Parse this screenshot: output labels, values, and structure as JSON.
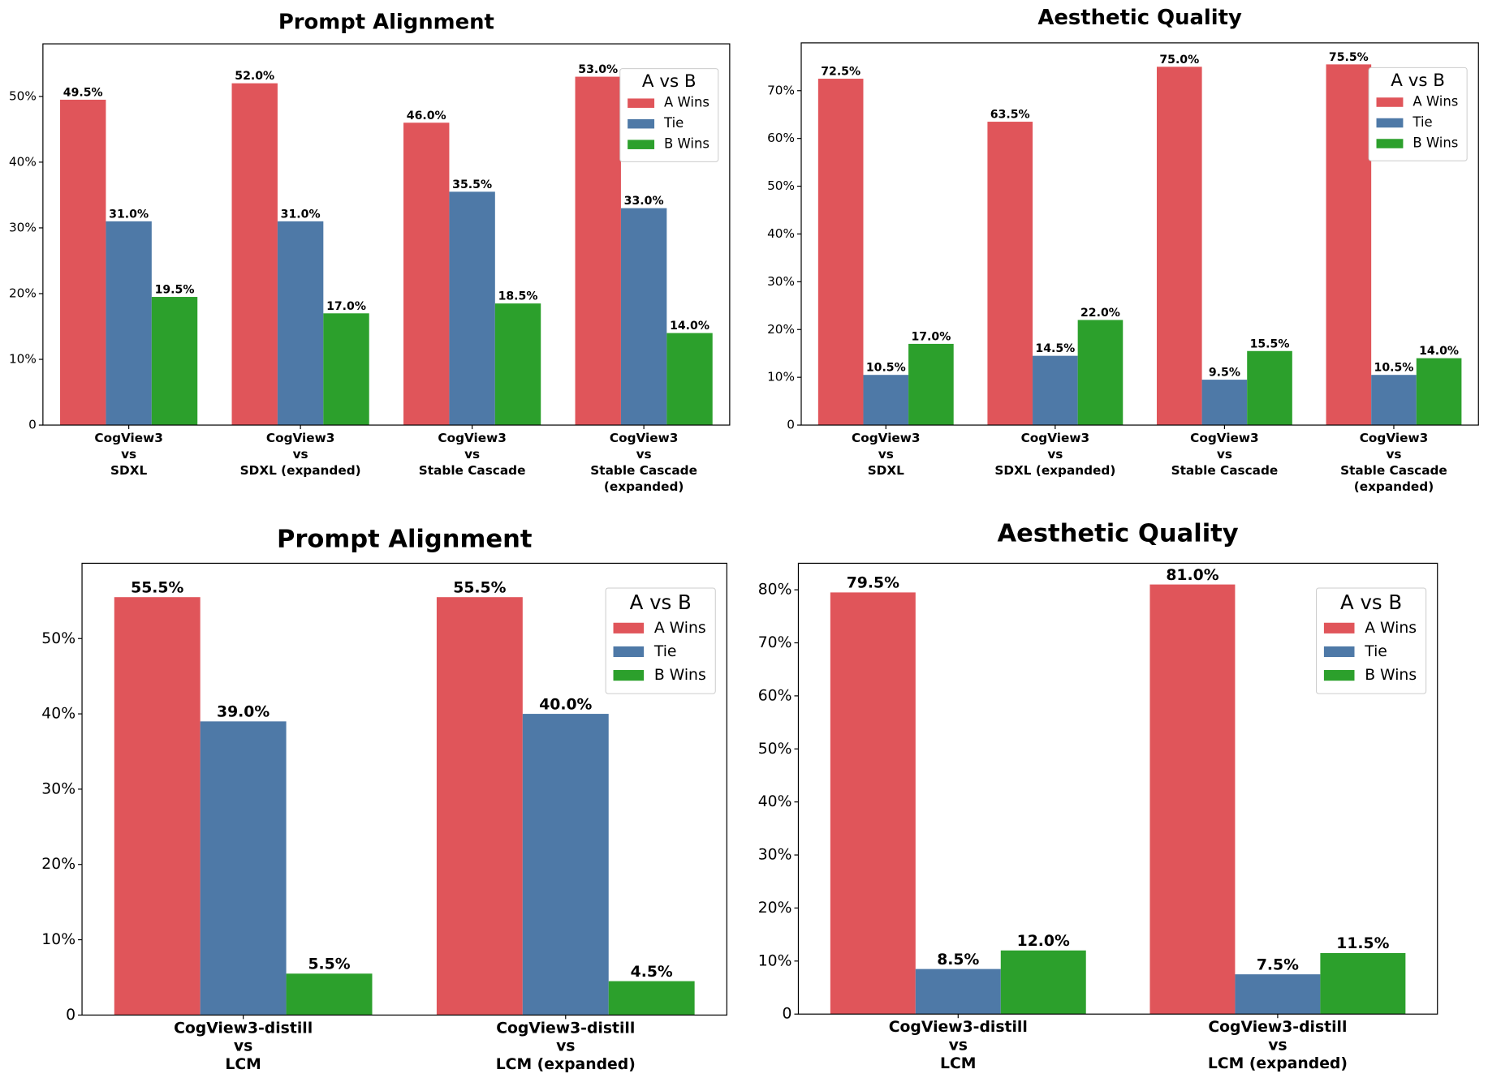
{
  "chart_data": [
    {
      "type": "bar",
      "title": "Prompt Alignment",
      "categories": [
        [
          "CogView3",
          "vs",
          "SDXL"
        ],
        [
          "CogView3",
          "vs",
          "SDXL (expanded)"
        ],
        [
          "CogView3",
          "vs",
          "Stable Cascade"
        ],
        [
          "CogView3",
          "vs",
          "Stable Cascade",
          "(expanded)"
        ]
      ],
      "series": [
        {
          "name": "A Wins",
          "color": "#e0555a",
          "values": [
            49.5,
            52.0,
            46.0,
            53.0
          ],
          "value_labels": [
            "49.5%",
            "52.0%",
            "46.0%",
            "53.0%"
          ]
        },
        {
          "name": "Tie",
          "color": "#4e79a7",
          "values": [
            31.0,
            31.0,
            35.5,
            33.0
          ],
          "value_labels": [
            "31.0%",
            "31.0%",
            "35.5%",
            "33.0%"
          ]
        },
        {
          "name": "B Wins",
          "color": "#2ca02c",
          "values": [
            19.5,
            17.0,
            18.5,
            14.0
          ],
          "value_labels": [
            "19.5%",
            "17.0%",
            "18.5%",
            "14.0%"
          ]
        }
      ],
      "ylim": [
        0,
        58
      ],
      "yticks": [
        0,
        {
          "value": 10,
          "label": "10%"
        },
        {
          "value": 20,
          "label": "20%"
        },
        {
          "value": 30,
          "label": "30%"
        },
        {
          "value": 40,
          "label": "40%"
        },
        {
          "value": 50,
          "label": "50%"
        }
      ],
      "legend_title": "A vs B",
      "legend": "upper right"
    },
    {
      "type": "bar",
      "title": "Aesthetic Quality",
      "categories": [
        [
          "CogView3",
          "vs",
          "SDXL"
        ],
        [
          "CogView3",
          "vs",
          "SDXL (expanded)"
        ],
        [
          "CogView3",
          "vs",
          "Stable Cascade"
        ],
        [
          "CogView3",
          "vs",
          "Stable Cascade",
          "(expanded)"
        ]
      ],
      "series": [
        {
          "name": "A Wins",
          "color": "#e0555a",
          "values": [
            72.5,
            63.5,
            75.0,
            75.5
          ],
          "value_labels": [
            "72.5%",
            "63.5%",
            "75.0%",
            "75.5%"
          ]
        },
        {
          "name": "Tie",
          "color": "#4e79a7",
          "values": [
            10.5,
            14.5,
            9.5,
            10.5
          ],
          "value_labels": [
            "10.5%",
            "14.5%",
            "9.5%",
            "10.5%"
          ]
        },
        {
          "name": "B Wins",
          "color": "#2ca02c",
          "values": [
            17.0,
            22.0,
            15.5,
            14.0
          ],
          "value_labels": [
            "17.0%",
            "22.0%",
            "15.5%",
            "14.0%"
          ]
        }
      ],
      "ylim": [
        0,
        80
      ],
      "yticks": [
        0,
        {
          "value": 10,
          "label": "10%"
        },
        {
          "value": 20,
          "label": "20%"
        },
        {
          "value": 30,
          "label": "30%"
        },
        {
          "value": 40,
          "label": "40%"
        },
        {
          "value": 50,
          "label": "50%"
        },
        {
          "value": 60,
          "label": "60%"
        },
        {
          "value": 70,
          "label": "70%"
        }
      ],
      "legend_title": "A vs B",
      "legend": "upper right"
    },
    {
      "type": "bar",
      "title": "Prompt Alignment",
      "categories": [
        [
          "CogView3-distill",
          "vs",
          "LCM"
        ],
        [
          "CogView3-distill",
          "vs",
          "LCM (expanded)"
        ]
      ],
      "series": [
        {
          "name": "A Wins",
          "color": "#e0555a",
          "values": [
            55.5,
            55.5
          ],
          "value_labels": [
            "55.5%",
            "55.5%"
          ]
        },
        {
          "name": "Tie",
          "color": "#4e79a7",
          "values": [
            39.0,
            40.0
          ],
          "value_labels": [
            "39.0%",
            "40.0%"
          ]
        },
        {
          "name": "B Wins",
          "color": "#2ca02c",
          "values": [
            5.5,
            4.5
          ],
          "value_labels": [
            "5.5%",
            "4.5%"
          ]
        }
      ],
      "ylim": [
        0,
        60
      ],
      "yticks": [
        0,
        {
          "value": 10,
          "label": "10%"
        },
        {
          "value": 20,
          "label": "20%"
        },
        {
          "value": 30,
          "label": "30%"
        },
        {
          "value": 40,
          "label": "40%"
        },
        {
          "value": 50,
          "label": "50%"
        }
      ],
      "legend_title": "A vs B",
      "legend": "upper right"
    },
    {
      "type": "bar",
      "title": "Aesthetic Quality",
      "categories": [
        [
          "CogView3-distill",
          "vs",
          "LCM"
        ],
        [
          "CogView3-distill",
          "vs",
          "LCM (expanded)"
        ]
      ],
      "series": [
        {
          "name": "A Wins",
          "color": "#e0555a",
          "values": [
            79.5,
            81.0
          ],
          "value_labels": [
            "79.5%",
            "81.0%"
          ]
        },
        {
          "name": "Tie",
          "color": "#4e79a7",
          "values": [
            8.5,
            7.5
          ],
          "value_labels": [
            "8.5%",
            "7.5%"
          ]
        },
        {
          "name": "B Wins",
          "color": "#2ca02c",
          "values": [
            12.0,
            11.5
          ],
          "value_labels": [
            "12.0%",
            "11.5%"
          ]
        }
      ],
      "ylim": [
        0,
        85
      ],
      "yticks": [
        0,
        {
          "value": 10,
          "label": "10%"
        },
        {
          "value": 20,
          "label": "20%"
        },
        {
          "value": 30,
          "label": "30%"
        },
        {
          "value": 40,
          "label": "40%"
        },
        {
          "value": 50,
          "label": "50%"
        },
        {
          "value": 60,
          "label": "60%"
        },
        {
          "value": 70,
          "label": "70%"
        },
        {
          "value": 80,
          "label": "80%"
        }
      ],
      "legend_title": "A vs B",
      "legend": "upper right"
    }
  ]
}
